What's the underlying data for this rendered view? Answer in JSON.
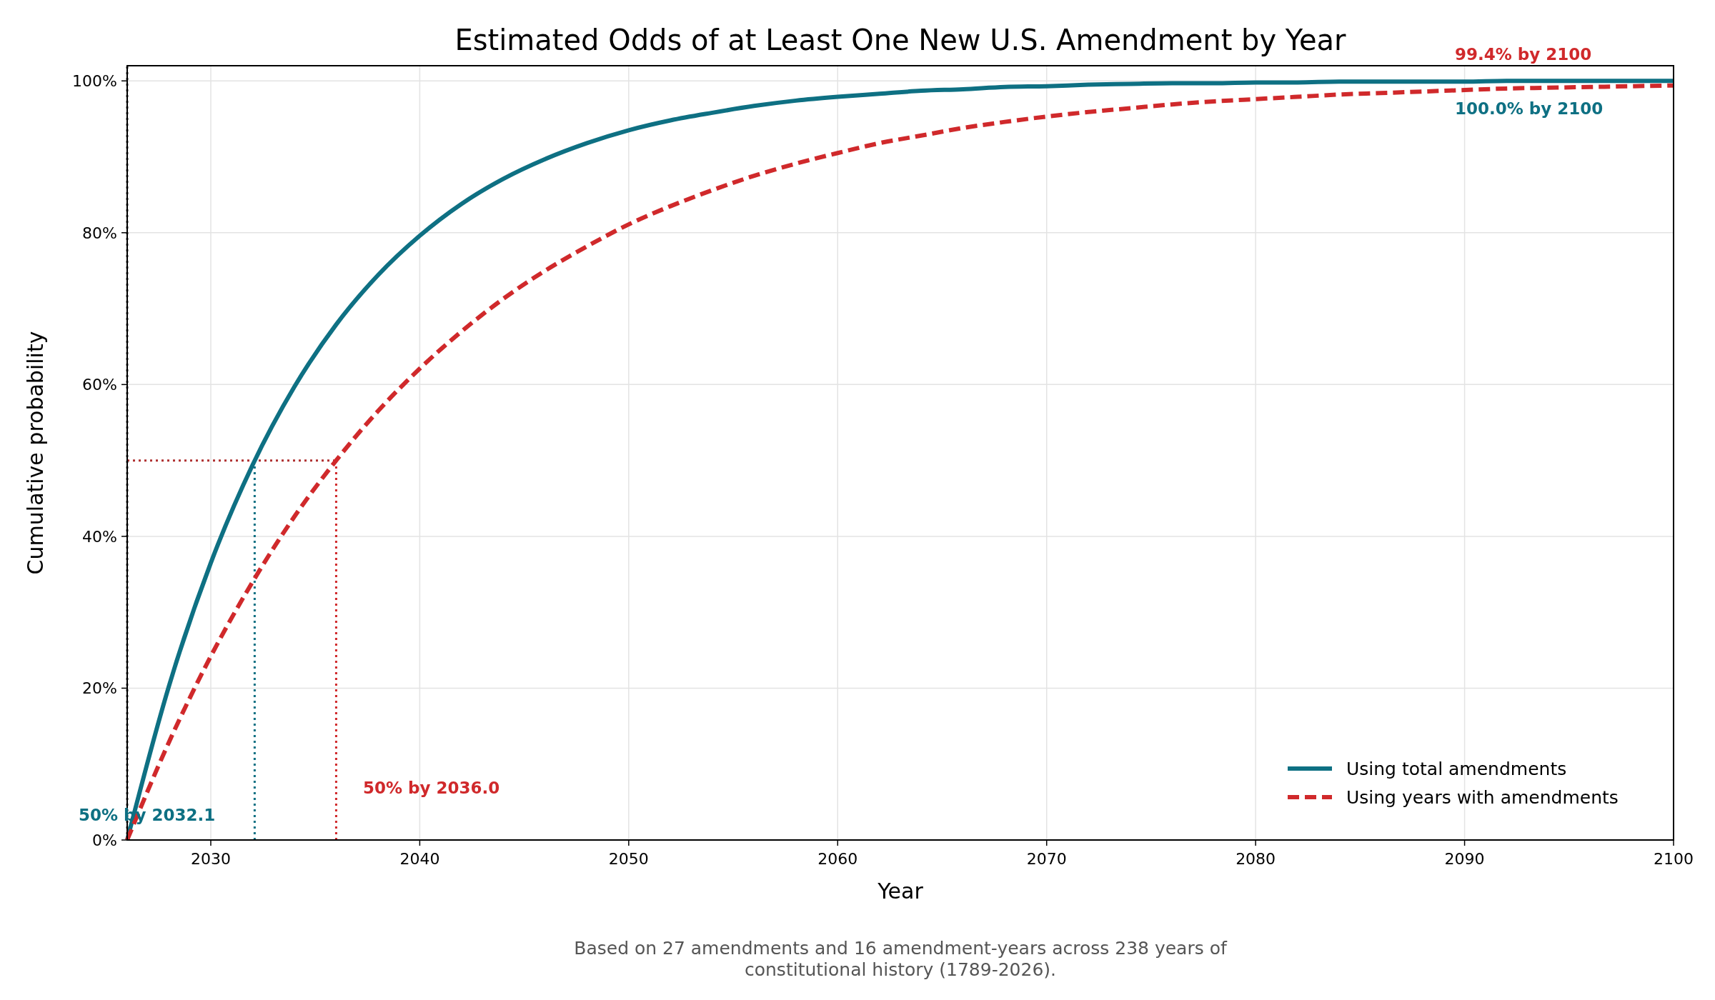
{
  "chart_data": {
    "type": "line",
    "title": "Estimated Odds of at Least One New U.S. Amendment by Year",
    "xlabel": "Year",
    "ylabel": "Cumulative probability",
    "x": [
      2026,
      2028,
      2030,
      2032,
      2034,
      2036,
      2038,
      2040,
      2042,
      2044,
      2046,
      2048,
      2050,
      2052,
      2054,
      2056,
      2058,
      2060,
      2062,
      2064,
      2066,
      2068,
      2070,
      2072,
      2074,
      2076,
      2078,
      2080,
      2082,
      2084,
      2086,
      2088,
      2090,
      2092,
      2094,
      2096,
      2098,
      2100
    ],
    "series": [
      {
        "name": "Using total amendments",
        "color": "#0e7083",
        "line_style": "solid",
        "values": [
          0,
          20.3,
          36.5,
          49.4,
          59.7,
          67.9,
          74.4,
          79.6,
          83.8,
          87.1,
          89.7,
          91.8,
          93.5,
          94.8,
          95.8,
          96.7,
          97.4,
          97.9,
          98.3,
          98.7,
          98.9,
          99.2,
          99.3,
          99.5,
          99.6,
          99.7,
          99.7,
          99.8,
          99.8,
          99.9,
          99.9,
          99.9,
          99.9,
          100,
          100,
          100,
          100,
          100
        ]
      },
      {
        "name": "Using years with amendments",
        "color": "#d0292b",
        "line_style": "dashed",
        "values": [
          0,
          12.9,
          24.2,
          34.0,
          42.6,
          50.0,
          56.5,
          62.1,
          67.0,
          71.3,
          75.0,
          78.2,
          81.1,
          83.5,
          85.6,
          87.5,
          89.1,
          90.5,
          91.8,
          92.8,
          93.8,
          94.6,
          95.3,
          95.9,
          96.4,
          96.9,
          97.3,
          97.6,
          97.9,
          98.2,
          98.4,
          98.6,
          98.8,
          99.0,
          99.1,
          99.2,
          99.3,
          99.4
        ]
      }
    ],
    "xlim": [
      2026,
      2100
    ],
    "xticks": [
      2030,
      2040,
      2050,
      2060,
      2070,
      2080,
      2090,
      2100
    ],
    "ylim": [
      0,
      102
    ],
    "yticks": [
      {
        "value": 0,
        "label": "0%"
      },
      {
        "value": 20,
        "label": "20%"
      },
      {
        "value": 40,
        "label": "40%"
      },
      {
        "value": 60,
        "label": "60%"
      },
      {
        "value": 80,
        "label": "80%"
      },
      {
        "value": 100,
        "label": "100%"
      }
    ],
    "grid": true,
    "legend": "bottom right",
    "ref_lines": [
      {
        "axis": "y",
        "value": 50,
        "color": "#b03030",
        "line_style": "dotted"
      },
      {
        "axis": "x",
        "value": 2032.1,
        "color": "#0e7083",
        "line_style": "dotted"
      },
      {
        "axis": "x",
        "value": 2036.0,
        "color": "#d0292b",
        "line_style": "dotted"
      },
      {
        "axis": "x",
        "value": 2026,
        "color": "#333333",
        "line_style": "dotted"
      }
    ],
    "annotations": [
      "50% by 2032.1",
      "50% by 2036.0",
      "99.4% by 2100",
      "100.0% by 2100",
      "Based on 27 amendments and 16 amendment-years across 238 years of constitutional history (1789-2026)."
    ]
  }
}
